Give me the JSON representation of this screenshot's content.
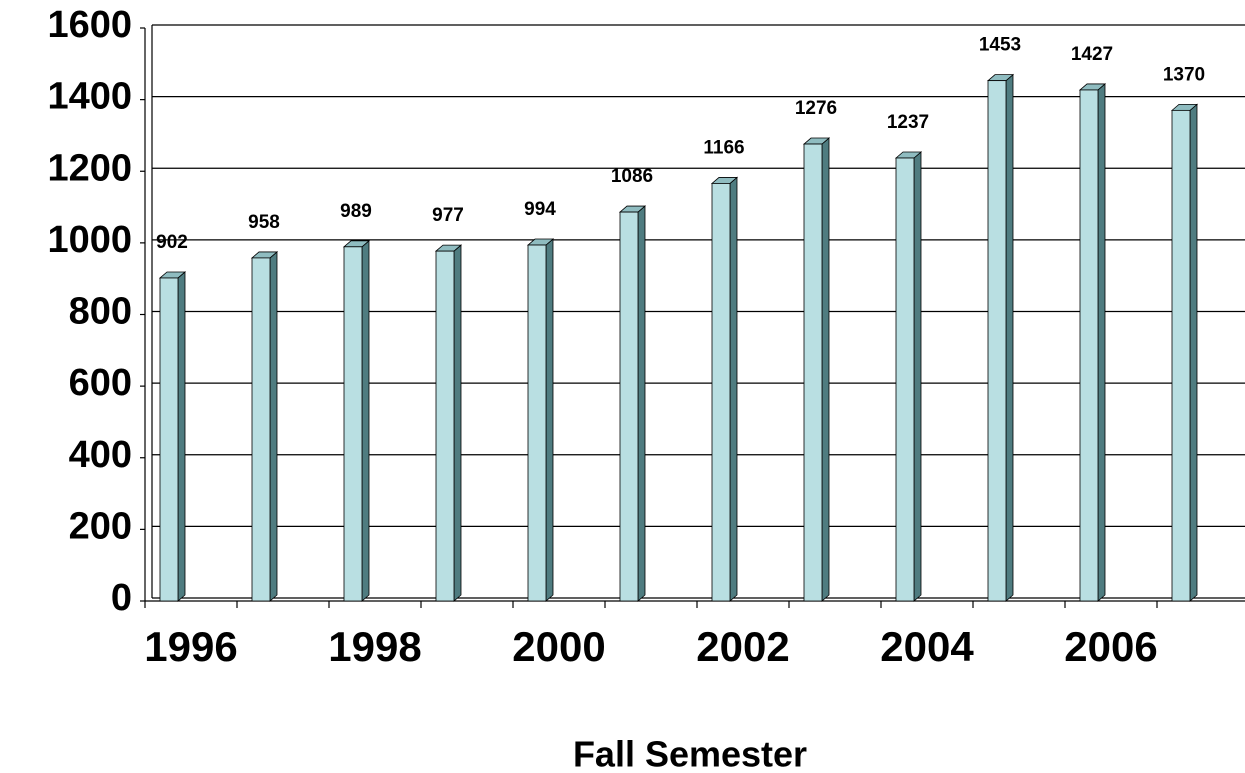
{
  "chart_data": {
    "type": "bar",
    "x_axis_label": "Fall Semester",
    "categories": [
      "1996",
      null,
      "1998",
      null,
      "2000",
      null,
      "2002",
      null,
      "2004",
      null,
      "2006",
      null
    ],
    "values": [
      902,
      958,
      989,
      977,
      994,
      1086,
      1166,
      1276,
      1237,
      1453,
      1427,
      1370
    ],
    "color": "#b9dfe2",
    "ylim": [
      0,
      1600
    ],
    "yticks": [
      0,
      200,
      400,
      600,
      800,
      1000,
      1200,
      1400,
      1600
    ],
    "grid": true
  }
}
